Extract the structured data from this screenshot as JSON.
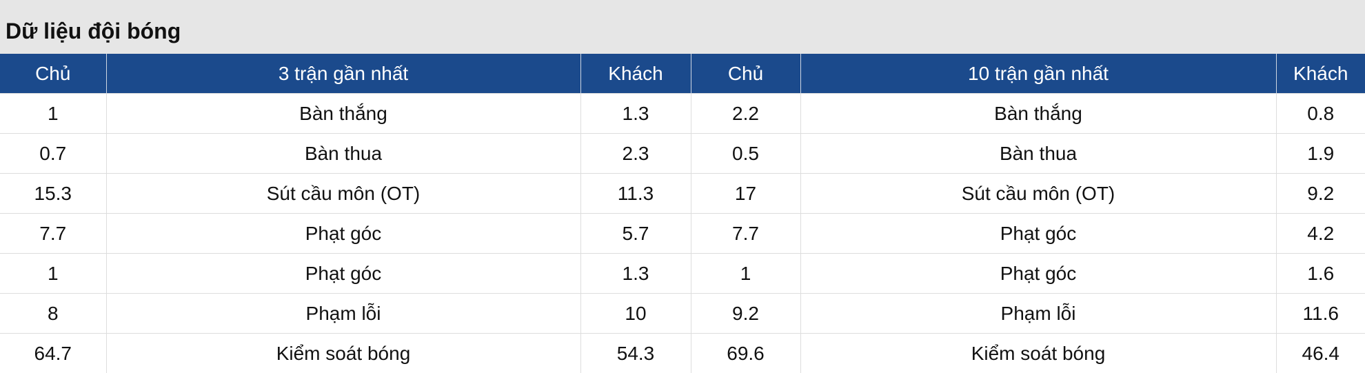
{
  "header": {
    "title": "Dữ liệu đội bóng"
  },
  "table": {
    "columns": [
      "Chủ",
      "3 trận gần nhất",
      "Khách",
      "Chủ",
      "10 trận gần nhất",
      "Khách"
    ],
    "rows": [
      [
        1,
        "Bàn thắng",
        1.3,
        2.2,
        "Bàn thắng",
        0.8
      ],
      [
        0.7,
        "Bàn thua",
        2.3,
        0.5,
        "Bàn thua",
        1.9
      ],
      [
        15.3,
        "Sút cầu môn (OT)",
        11.3,
        17,
        "Sút cầu môn (OT)",
        9.2
      ],
      [
        7.7,
        "Phạt góc",
        5.7,
        7.7,
        "Phạt góc",
        4.2
      ],
      [
        1,
        "Phạt góc",
        1.3,
        1,
        "Phạt góc",
        1.6
      ],
      [
        8,
        "Phạm lỗi",
        10,
        9.2,
        "Phạm lỗi",
        11.6
      ],
      [
        64.7,
        "Kiểm soát bóng",
        54.3,
        69.6,
        "Kiểm soát bóng",
        46.4
      ]
    ]
  }
}
